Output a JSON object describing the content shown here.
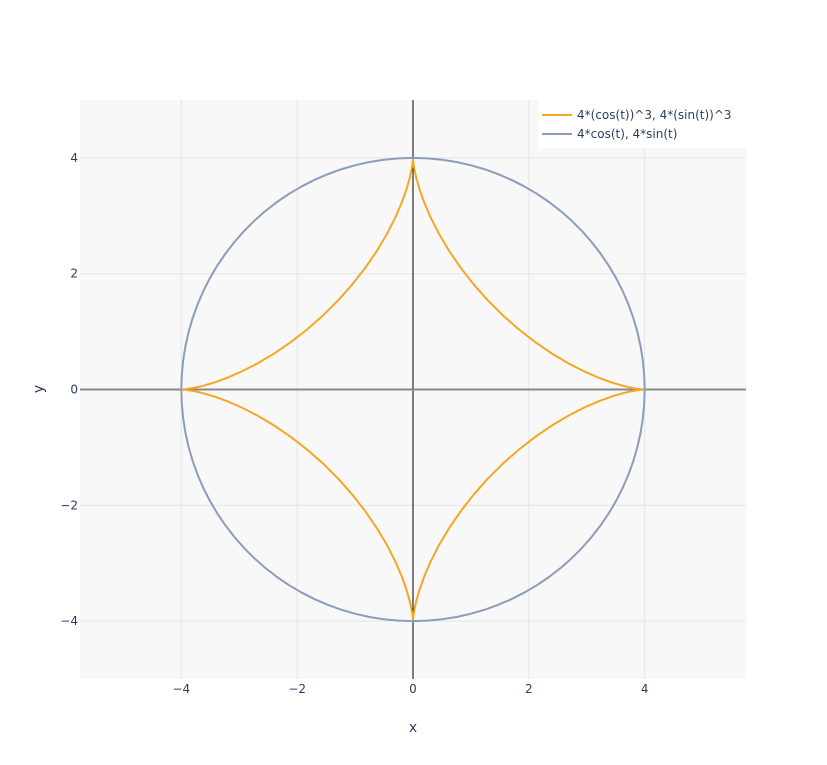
{
  "chart_data": {
    "type": "line",
    "title": "",
    "xlabel": "x",
    "ylabel": "y",
    "xlim": [
      -5.75,
      5.75
    ],
    "ylim": [
      -5,
      5
    ],
    "xticks": [
      -4,
      -2,
      0,
      2,
      4
    ],
    "yticks": [
      -4,
      -2,
      0,
      2,
      4
    ],
    "xtick_labels": [
      "−4",
      "−2",
      "0",
      "2",
      "4"
    ],
    "ytick_labels": [
      "−4",
      "−2",
      "0",
      "2",
      "4"
    ],
    "grid": true,
    "legend_position": "top-right",
    "series": [
      {
        "name": "4*(cos(t))^3, 4*(sin(t))^3",
        "color": "#f5a623",
        "x_expr": "4*(cos(t))^3",
        "y_expr": "4*(sin(t))^3",
        "t_range": [
          0,
          6.283185307
        ],
        "samples": 100
      },
      {
        "name": "4*cos(t), 4*sin(t)",
        "color": "#8c9cbb",
        "x_expr": "4*cos(t)",
        "y_expr": "4*sin(t)",
        "t_range": [
          0,
          6.283185307
        ],
        "samples": 100
      }
    ],
    "colors": {
      "plot_background": "#f8f8f8",
      "grid": "#e6e6e6",
      "zero_line_x": "#000000",
      "zero_line_y": "#888888"
    }
  }
}
